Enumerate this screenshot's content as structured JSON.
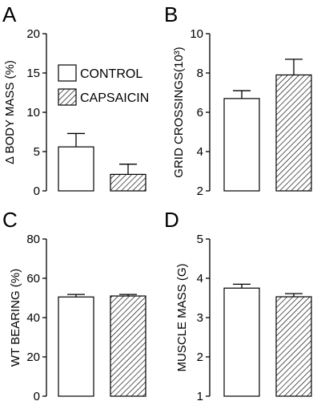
{
  "legend": {
    "items": [
      {
        "label": "CONTROL",
        "pattern": "open"
      },
      {
        "label": "CAPSAICIN",
        "pattern": "hatched"
      }
    ]
  },
  "chart_data": [
    {
      "panel": "A",
      "type": "bar",
      "ylabel": "Δ BODY MASS (%)",
      "ylim": [
        0,
        20
      ],
      "yticks": [
        "0",
        "5",
        "10",
        "15",
        "20"
      ],
      "series": [
        {
          "name": "CONTROL",
          "value": 5.6,
          "error": 1.7
        },
        {
          "name": "CAPSAICIN",
          "value": 2.1,
          "error": 1.3
        }
      ]
    },
    {
      "panel": "B",
      "type": "bar",
      "ylabel": "GRID CROSSINGS(10³)",
      "ylim": [
        2,
        10
      ],
      "yticks": [
        "2",
        "4",
        "6",
        "8",
        "10"
      ],
      "series": [
        {
          "name": "CONTROL",
          "value": 6.7,
          "error": 0.4
        },
        {
          "name": "CAPSAICIN",
          "value": 7.9,
          "error": 0.8
        }
      ]
    },
    {
      "panel": "C",
      "type": "bar",
      "ylabel": "WT BEARING (%)",
      "ylim": [
        0,
        80
      ],
      "yticks": [
        "0",
        "20",
        "40",
        "60",
        "80"
      ],
      "series": [
        {
          "name": "CONTROL",
          "value": 50.5,
          "error": 1.3
        },
        {
          "name": "CAPSAICIN",
          "value": 51.0,
          "error": 0.8
        }
      ]
    },
    {
      "panel": "D",
      "type": "bar",
      "ylabel": "MUSCLE MASS (G)",
      "ylim": [
        1,
        5
      ],
      "yticks": [
        "1",
        "2",
        "3",
        "4",
        "5"
      ],
      "series": [
        {
          "name": "CONTROL",
          "value": 3.75,
          "error": 0.1
        },
        {
          "name": "CAPSAICIN",
          "value": 3.53,
          "error": 0.08
        }
      ]
    }
  ]
}
